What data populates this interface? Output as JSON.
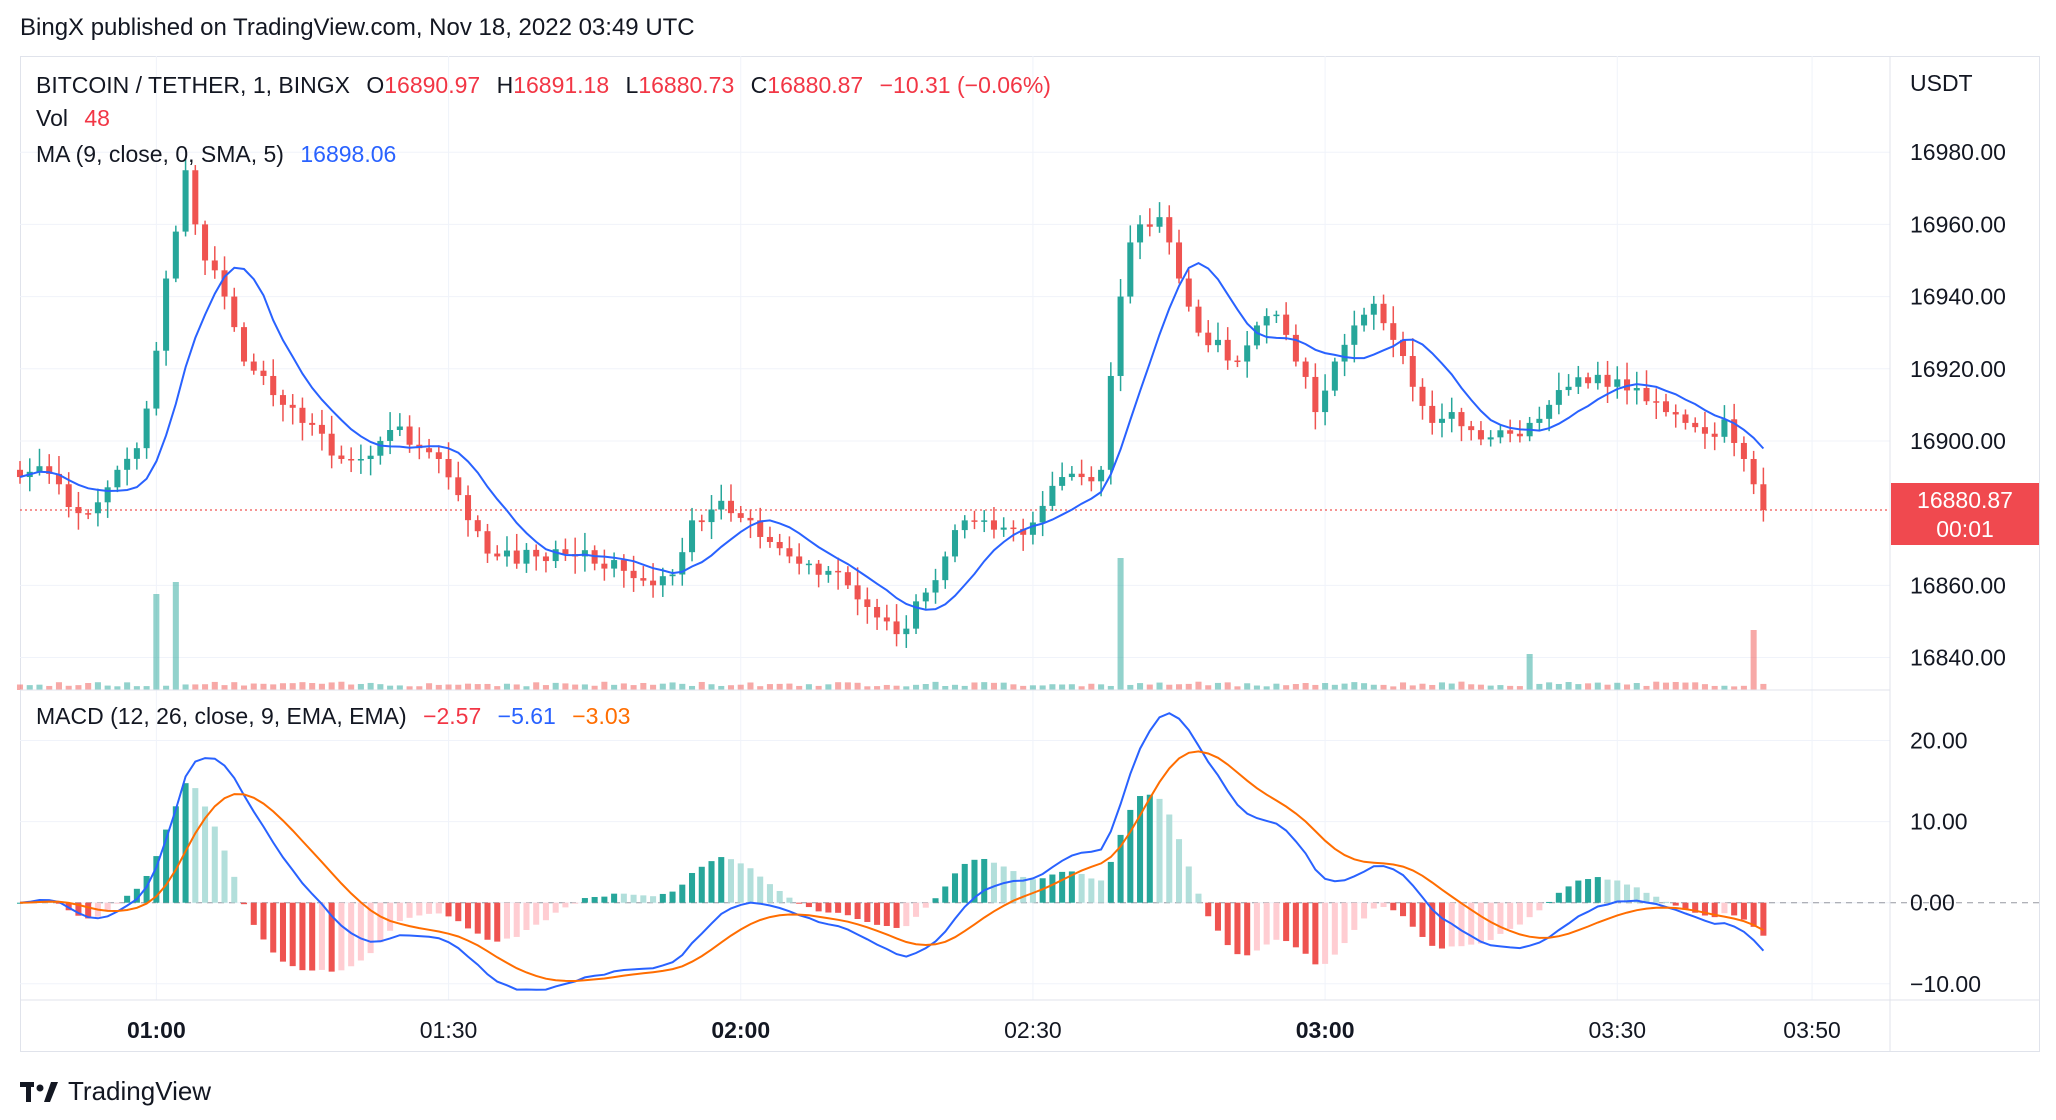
{
  "header": {
    "published": "BingX published on TradingView.com, Nov 18, 2022 03:49 UTC"
  },
  "legend": {
    "symbol": "BITCOIN / TETHER, 1, BINGX",
    "o_label": "O",
    "o": "16890.97",
    "h_label": "H",
    "h": "16891.18",
    "l_label": "L",
    "l": "16880.73",
    "c_label": "C",
    "c": "16880.87",
    "change": "−10.31 (−0.06%)",
    "vol_label": "Vol",
    "vol": "48",
    "ma_label": "MA (9, close, 0, SMA, 5)",
    "ma": "16898.06",
    "macd_label": "MACD (12, 26, close, 9, EMA, EMA)",
    "macd_hist": "−2.57",
    "macd_line": "−5.61",
    "macd_signal": "−3.03"
  },
  "price_axis": {
    "unit": "USDT",
    "last_price": "16880.87",
    "countdown": "00:01"
  },
  "footer": {
    "brand": "TradingView"
  },
  "colors": {
    "up": "#26a69a",
    "down": "#ef5350",
    "ma": "#2962ff",
    "signal": "#ff6d00",
    "grid": "#f0f3fa"
  },
  "chart_data": {
    "type": "candlestick",
    "x_ticks": [
      {
        "label": "01:00",
        "min": 0,
        "bold": true
      },
      {
        "label": "01:30",
        "min": 30,
        "bold": false
      },
      {
        "label": "02:00",
        "min": 60,
        "bold": true
      },
      {
        "label": "02:30",
        "min": 90,
        "bold": false
      },
      {
        "label": "03:00",
        "min": 120,
        "bold": true
      },
      {
        "label": "03:30",
        "min": 150,
        "bold": false
      },
      {
        "label": "03:50",
        "min": 170,
        "bold": false
      }
    ],
    "x_range_min": [
      -14,
      178
    ],
    "price_ticks": [
      "16980.00",
      "16960.00",
      "16940.00",
      "16920.00",
      "16900.00",
      "16860.00",
      "16840.00"
    ],
    "price_range": [
      16831,
      17000
    ],
    "macd_ticks": [
      "20.00",
      "10.00",
      "0.00",
      "−10.00"
    ],
    "macd_range": [
      -12,
      25
    ],
    "close_anchors": [
      [
        -14,
        16890
      ],
      [
        -12,
        16893
      ],
      [
        -10,
        16888
      ],
      [
        -8,
        16880
      ],
      [
        -6,
        16883
      ],
      [
        -4,
        16892
      ],
      [
        -2,
        16898
      ],
      [
        0,
        16925
      ],
      [
        1,
        16945
      ],
      [
        2,
        16958
      ],
      [
        3,
        16975
      ],
      [
        4,
        16960
      ],
      [
        5,
        16950
      ],
      [
        7,
        16940
      ],
      [
        9,
        16922
      ],
      [
        11,
        16918
      ],
      [
        13,
        16910
      ],
      [
        15,
        16905
      ],
      [
        17,
        16902
      ],
      [
        19,
        16895
      ],
      [
        21,
        16895
      ],
      [
        23,
        16900
      ],
      [
        25,
        16904
      ],
      [
        27,
        16898
      ],
      [
        29,
        16895
      ],
      [
        31,
        16885
      ],
      [
        33,
        16875
      ],
      [
        35,
        16868
      ],
      [
        37,
        16866
      ],
      [
        39,
        16868
      ],
      [
        41,
        16870
      ],
      [
        43,
        16868
      ],
      [
        45,
        16866
      ],
      [
        47,
        16867
      ],
      [
        49,
        16862
      ],
      [
        51,
        16860
      ],
      [
        53,
        16863
      ],
      [
        55,
        16878
      ],
      [
        57,
        16881
      ],
      [
        59,
        16880
      ],
      [
        61,
        16878
      ],
      [
        63,
        16872
      ],
      [
        65,
        16868
      ],
      [
        67,
        16866
      ],
      [
        69,
        16864
      ],
      [
        71,
        16860
      ],
      [
        73,
        16854
      ],
      [
        75,
        16850
      ],
      [
        77,
        16848
      ],
      [
        79,
        16858
      ],
      [
        81,
        16868
      ],
      [
        83,
        16878
      ],
      [
        85,
        16878
      ],
      [
        87,
        16876
      ],
      [
        89,
        16874
      ],
      [
        91,
        16882
      ],
      [
        93,
        16890
      ],
      [
        95,
        16890
      ],
      [
        97,
        16892
      ],
      [
        98,
        16918
      ],
      [
        99,
        16940
      ],
      [
        100,
        16955
      ],
      [
        101,
        16960
      ],
      [
        103,
        16962
      ],
      [
        104,
        16955
      ],
      [
        105,
        16945
      ],
      [
        107,
        16930
      ],
      [
        109,
        16928
      ],
      [
        111,
        16922
      ],
      [
        113,
        16932
      ],
      [
        115,
        16935
      ],
      [
        117,
        16922
      ],
      [
        119,
        16908
      ],
      [
        121,
        16922
      ],
      [
        123,
        16932
      ],
      [
        125,
        16938
      ],
      [
        127,
        16928
      ],
      [
        129,
        16915
      ],
      [
        131,
        16905
      ],
      [
        133,
        16908
      ],
      [
        135,
        16903
      ],
      [
        137,
        16901
      ],
      [
        139,
        16902
      ],
      [
        141,
        16905
      ],
      [
        143,
        16910
      ],
      [
        145,
        16915
      ],
      [
        147,
        16916
      ],
      [
        149,
        16915
      ],
      [
        151,
        16914
      ],
      [
        153,
        16911
      ],
      [
        155,
        16908
      ],
      [
        157,
        16905
      ],
      [
        159,
        16902
      ],
      [
        161,
        16906
      ],
      [
        163,
        16895
      ],
      [
        164,
        16888
      ],
      [
        165,
        16880.87
      ]
    ],
    "volume_spikes": [
      {
        "min": 0,
        "value": 8,
        "direction": "up"
      },
      {
        "min": 2,
        "value": 9,
        "direction": "up"
      },
      {
        "min": 99,
        "value": 11,
        "direction": "up"
      },
      {
        "min": 141,
        "value": 3,
        "direction": "up"
      },
      {
        "min": 164,
        "value": 5,
        "direction": "down"
      }
    ]
  }
}
